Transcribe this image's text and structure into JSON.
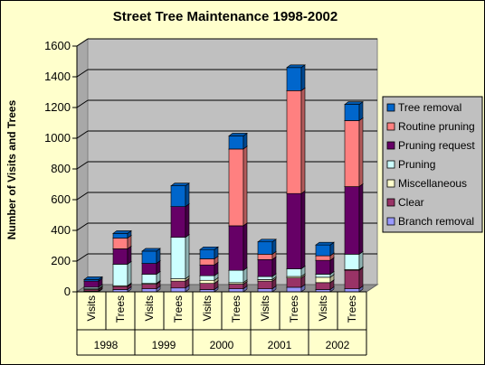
{
  "chart_data": {
    "type": "bar",
    "stacked": true,
    "three_d": true,
    "title": "Street Tree Maintenance 1998-2002",
    "xlabel": "",
    "ylabel": "Number of Visits and Trees",
    "ylim": [
      0,
      1600
    ],
    "yticks": [
      "0",
      "200",
      "400",
      "600",
      "800",
      "1000",
      "1200",
      "1400",
      "1600"
    ],
    "grid": true,
    "legend_position": "right",
    "groups": [
      "1998",
      "1999",
      "2000",
      "2001",
      "2002"
    ],
    "categories": [
      "Visits",
      "Trees",
      "Visits",
      "Trees",
      "Visits",
      "Trees",
      "Visits",
      "Trees",
      "Visits",
      "Trees"
    ],
    "series": [
      {
        "name": "Branch removal",
        "color": "#9999ff",
        "values": [
          5,
          15,
          20,
          25,
          15,
          20,
          20,
          30,
          15,
          20
        ]
      },
      {
        "name": "Clear",
        "color": "#993366",
        "values": [
          10,
          20,
          30,
          45,
          40,
          30,
          50,
          60,
          45,
          120
        ]
      },
      {
        "name": "Miscellaneous",
        "color": "#ffffcc",
        "values": [
          5,
          5,
          5,
          15,
          20,
          10,
          10,
          10,
          35,
          5
        ]
      },
      {
        "name": "Pruning",
        "color": "#ccffff",
        "values": [
          10,
          140,
          60,
          270,
          30,
          80,
          20,
          50,
          20,
          100
        ]
      },
      {
        "name": "Pruning request",
        "color": "#660066",
        "values": [
          40,
          100,
          70,
          200,
          70,
          290,
          110,
          490,
          90,
          440
        ]
      },
      {
        "name": "Routine pruning",
        "color": "#ff8080",
        "values": [
          0,
          70,
          0,
          0,
          40,
          500,
          35,
          670,
          30,
          430
        ]
      },
      {
        "name": "Tree removal",
        "color": "#0066cc",
        "values": [
          10,
          30,
          80,
          135,
          60,
          85,
          80,
          150,
          70,
          105
        ]
      }
    ],
    "legend_order": [
      "Tree removal",
      "Routine pruning",
      "Pruning request",
      "Pruning",
      "Miscellaneous",
      "Clear",
      "Branch removal"
    ]
  }
}
